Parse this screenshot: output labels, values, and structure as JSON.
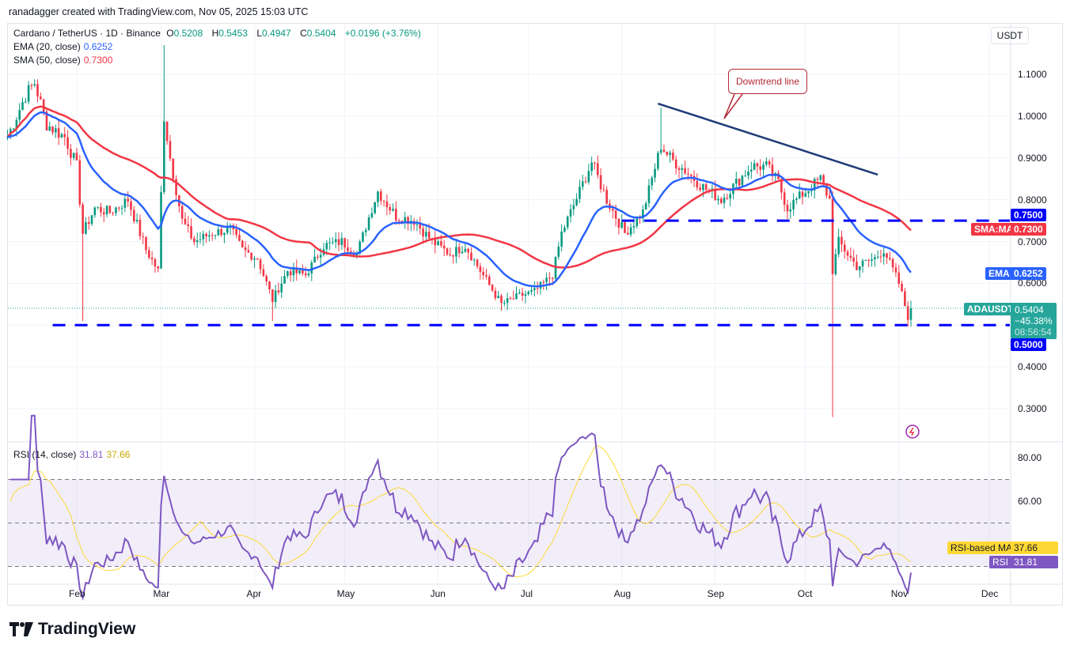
{
  "credit": "ranadagger created with TradingView.com, Nov 05, 2025 15:03 UTC",
  "legend": {
    "symbol": "Cardano / TetherUS · 1D · Binance",
    "o_label": "O",
    "o": "0.5208",
    "h_label": "H",
    "h": "0.5453",
    "l_label": "L",
    "l": "0.4947",
    "c_label": "C",
    "c": "0.5404",
    "change": "+0.0196 (+3.76%)",
    "ema_label": "EMA (20, close)",
    "ema_value": "0.6252",
    "sma_label": "SMA (50, close)",
    "sma_value": "0.7300",
    "rsi_label": "RSI (14, close)",
    "rsi_value": "31.81",
    "rsi_ma_value": "37.66"
  },
  "currency_button": "USDT",
  "annotation": "Downtrend line",
  "tags": {
    "level_high": "0.7500",
    "sma_name": "SMA:MA",
    "sma": "0.7300",
    "ema_name": "EMA",
    "ema": "0.6252",
    "symbol_name": "ADAUSDT",
    "price": "0.5404",
    "pct": "−45.38%",
    "countdown": "08:56:54",
    "level_low": "0.5000",
    "rsi_ma_name": "RSI-based MA",
    "rsi_ma": "37.66",
    "rsi_name": "RSI",
    "rsi": "31.81"
  },
  "logo_text": "TradingView",
  "colors": {
    "up": "#089981",
    "down": "#f23645",
    "ema": "#2962ff",
    "sma": "#f23645",
    "rsi": "#7e57c2",
    "rsi_ma": "#fdd835",
    "levels": "#0000ff",
    "trendline": "#1e3a78"
  },
  "chart_data": {
    "type": "candlestick",
    "symbol": "ADAUSDT",
    "interval": "1D",
    "price_ticks": [
      "1.1000",
      "1.0000",
      "0.9000",
      "0.8000",
      "0.7000",
      "0.6000",
      "0.4000",
      "0.3000"
    ],
    "rsi_ticks": [
      "80.00",
      "60.00"
    ],
    "time_ticks": [
      "Feb",
      "Mar",
      "Apr",
      "May",
      "Jun",
      "Jul",
      "Aug",
      "Sep",
      "Oct",
      "Nov",
      "Dec"
    ],
    "close_keypoints": [
      [
        "2025-01-09",
        0.95
      ],
      [
        "2025-01-12",
        1.0
      ],
      [
        "2025-01-15",
        1.05
      ],
      [
        "2025-01-18",
        1.08
      ],
      [
        "2025-01-22",
        0.98
      ],
      [
        "2025-01-28",
        0.95
      ],
      [
        "2025-02-01",
        0.88
      ],
      [
        "2025-02-03",
        0.72
      ],
      [
        "2025-02-07",
        0.78
      ],
      [
        "2025-02-12",
        0.77
      ],
      [
        "2025-02-18",
        0.8
      ],
      [
        "2025-02-24",
        0.68
      ],
      [
        "2025-02-28",
        0.63
      ],
      [
        "2025-03-02",
        1.0
      ],
      [
        "2025-03-04",
        0.9
      ],
      [
        "2025-03-08",
        0.75
      ],
      [
        "2025-03-12",
        0.7
      ],
      [
        "2025-03-18",
        0.72
      ],
      [
        "2025-03-24",
        0.73
      ],
      [
        "2025-03-28",
        0.68
      ],
      [
        "2025-04-02",
        0.66
      ],
      [
        "2025-04-07",
        0.56
      ],
      [
        "2025-04-12",
        0.63
      ],
      [
        "2025-04-18",
        0.62
      ],
      [
        "2025-04-24",
        0.69
      ],
      [
        "2025-04-30",
        0.7
      ],
      [
        "2025-05-05",
        0.67
      ],
      [
        "2025-05-10",
        0.78
      ],
      [
        "2025-05-12",
        0.82
      ],
      [
        "2025-05-18",
        0.76
      ],
      [
        "2025-05-24",
        0.75
      ],
      [
        "2025-05-30",
        0.7
      ],
      [
        "2025-06-05",
        0.67
      ],
      [
        "2025-06-10",
        0.69
      ],
      [
        "2025-06-15",
        0.63
      ],
      [
        "2025-06-22",
        0.55
      ],
      [
        "2025-06-28",
        0.57
      ],
      [
        "2025-07-03",
        0.58
      ],
      [
        "2025-07-09",
        0.62
      ],
      [
        "2025-07-12",
        0.72
      ],
      [
        "2025-07-18",
        0.82
      ],
      [
        "2025-07-22",
        0.89
      ],
      [
        "2025-07-27",
        0.8
      ],
      [
        "2025-08-02",
        0.72
      ],
      [
        "2025-08-08",
        0.77
      ],
      [
        "2025-08-14",
        0.93
      ],
      [
        "2025-08-17",
        0.9
      ],
      [
        "2025-08-22",
        0.87
      ],
      [
        "2025-08-28",
        0.83
      ],
      [
        "2025-09-03",
        0.8
      ],
      [
        "2025-09-08",
        0.84
      ],
      [
        "2025-09-13",
        0.88
      ],
      [
        "2025-09-18",
        0.88
      ],
      [
        "2025-09-22",
        0.84
      ],
      [
        "2025-09-25",
        0.78
      ],
      [
        "2025-10-01",
        0.82
      ],
      [
        "2025-10-06",
        0.85
      ],
      [
        "2025-10-09",
        0.8
      ],
      [
        "2025-10-10",
        0.63
      ],
      [
        "2025-10-12",
        0.7
      ],
      [
        "2025-10-18",
        0.64
      ],
      [
        "2025-10-24",
        0.66
      ],
      [
        "2025-10-27",
        0.68
      ],
      [
        "2025-11-01",
        0.6
      ],
      [
        "2025-11-04",
        0.52
      ],
      [
        "2025-11-05",
        0.5404
      ]
    ],
    "notable_wicks": [
      [
        "2025-02-03",
        "low",
        0.51
      ],
      [
        "2025-03-02",
        "high",
        1.17
      ],
      [
        "2025-04-07",
        "low",
        0.51
      ],
      [
        "2025-10-10",
        "low",
        0.28
      ],
      [
        "2025-08-14",
        "high",
        1.02
      ]
    ],
    "horizontal_levels": [
      {
        "price": 0.75,
        "from": "2025-08-01"
      },
      {
        "price": 0.5,
        "from": "2025-01-24"
      }
    ],
    "trendline": {
      "from": [
        "2025-08-13",
        1.03
      ],
      "to": [
        "2025-10-25",
        0.86
      ]
    },
    "indicators": [
      "EMA 20",
      "SMA 50",
      "RSI 14",
      "RSI-based MA 14"
    ],
    "ylim": [
      0.24,
      1.2
    ],
    "rsi_levels": [
      70,
      50,
      30
    ]
  }
}
